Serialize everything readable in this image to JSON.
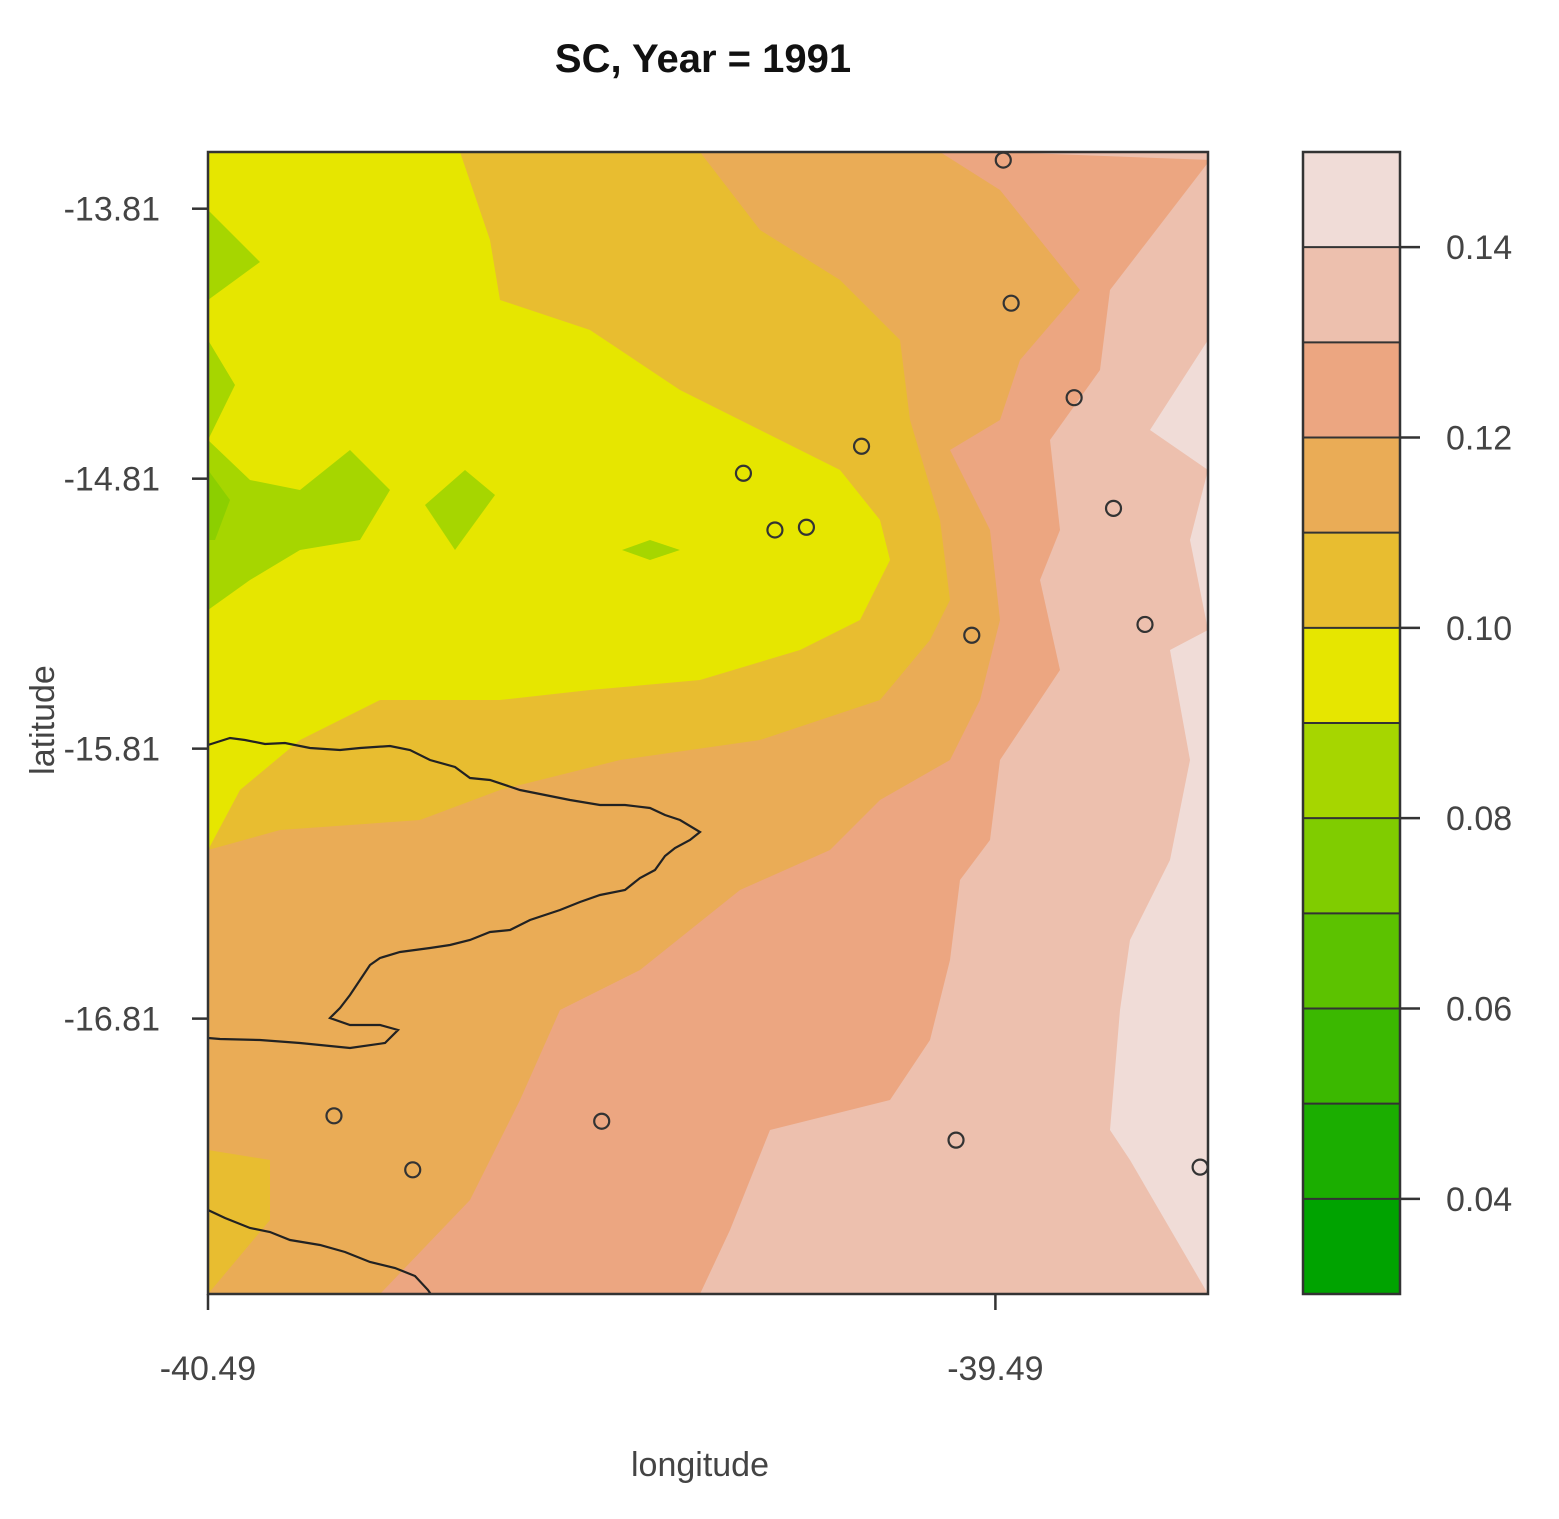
{
  "chart_data": {
    "type": "heatmap",
    "subtype": "filled-contour map with station points",
    "title": "SC, Year = 1991",
    "xlabel": "longitude",
    "ylabel": "latitude",
    "xlim": [
      -40.49,
      -39.22
    ],
    "ylim": [
      -17.83,
      -13.6
    ],
    "x_ticks": [
      -40.49,
      -39.49
    ],
    "x_tick_labels": [
      "-40.49",
      "-39.49"
    ],
    "y_ticks": [
      -13.81,
      -14.81,
      -15.81,
      -16.81
    ],
    "y_tick_labels": [
      "-13.81",
      "-14.81",
      "-15.81",
      "-16.81"
    ],
    "legend": {
      "position": "right",
      "levels": [
        0.03,
        0.04,
        0.05,
        0.06,
        0.07,
        0.08,
        0.09,
        0.1,
        0.11,
        0.12,
        0.13,
        0.14,
        0.15
      ],
      "colors": [
        "#00a300",
        "#1bae00",
        "#3bb800",
        "#5cc200",
        "#80cc00",
        "#a6d600",
        "#e6e600",
        "#e8bd30",
        "#eaac56",
        "#eca681",
        "#edc0ae",
        "#f0dcd7",
        "#f2f2f2"
      ],
      "tick_values": [
        0.04,
        0.06,
        0.08,
        0.1,
        0.12,
        0.14
      ],
      "tick_labels": [
        "0.04",
        "0.06",
        "0.08",
        "0.10",
        "0.12",
        "0.14"
      ]
    },
    "contour_colors": {
      "below_0.07": "#5cc200",
      "0.07_0.08": "#a6d600",
      "0.08_0.09": "#e6e600",
      "0.09_0.10": "#e8bd30",
      "0.10_0.11": "#eaac56",
      "0.11_0.12": "#eca681",
      "0.12_0.13": "#edc0ae",
      "0.13_0.14": "#f0dcd7"
    },
    "stations": [
      {
        "x": -39.48,
        "y": -13.63
      },
      {
        "x": -39.47,
        "y": -14.16
      },
      {
        "x": -39.39,
        "y": -14.51
      },
      {
        "x": -39.66,
        "y": -14.69
      },
      {
        "x": -39.81,
        "y": -14.79
      },
      {
        "x": -39.77,
        "y": -15.0
      },
      {
        "x": -39.73,
        "y": -14.99
      },
      {
        "x": -39.34,
        "y": -14.92
      },
      {
        "x": -39.52,
        "y": -15.39
      },
      {
        "x": -39.3,
        "y": -15.35
      },
      {
        "x": -39.54,
        "y": -17.26
      },
      {
        "x": -40.33,
        "y": -17.17
      },
      {
        "x": -40.23,
        "y": -17.37
      },
      {
        "x": -39.99,
        "y": -17.19
      },
      {
        "x": -39.23,
        "y": -17.36
      }
    ]
  }
}
